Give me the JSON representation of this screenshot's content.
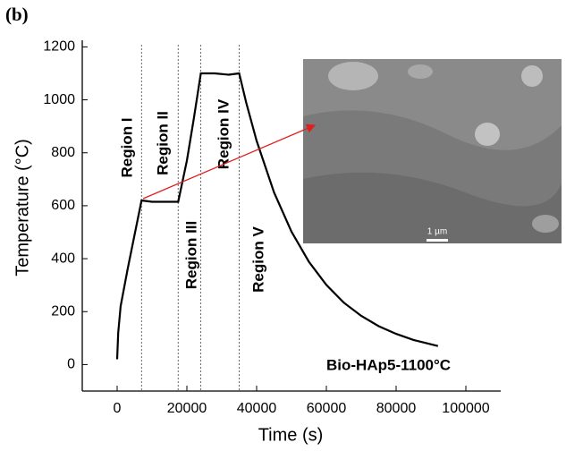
{
  "chart_data": {
    "type": "line",
    "panel_label": "(b)",
    "x_label": "Time (s)",
    "y_label": "Temperature (°C)",
    "xlim": [
      -10000,
      110000
    ],
    "ylim": [
      -100,
      1225
    ],
    "xticks": [
      0,
      20000,
      40000,
      60000,
      80000,
      100000
    ],
    "yticks": [
      0,
      200,
      400,
      600,
      800,
      1000,
      1200
    ],
    "series": [
      {
        "name": "Bio-HAp5-1100°C",
        "color": "#000000",
        "x": [
          0,
          300,
          1000,
          3000,
          5000,
          7000,
          10000,
          14000,
          17500,
          20000,
          22000,
          24000,
          28000,
          32000,
          35000,
          37000,
          40000,
          45000,
          50000,
          55000,
          60000,
          65000,
          70000,
          75000,
          80000,
          85000,
          92000
        ],
        "values": [
          20,
          120,
          220,
          360,
          490,
          620,
          615,
          615,
          615,
          770,
          930,
          1100,
          1100,
          1095,
          1100,
          990,
          845,
          650,
          502,
          388,
          301,
          234,
          184,
          145,
          116,
          93,
          70
        ]
      }
    ],
    "boundaries": [
      7000,
      17500,
      24000,
      35000
    ],
    "regions": [
      "Region I",
      "Region II",
      "Region III",
      "Region IV",
      "Region V"
    ],
    "scale_bar": "1 µm"
  }
}
